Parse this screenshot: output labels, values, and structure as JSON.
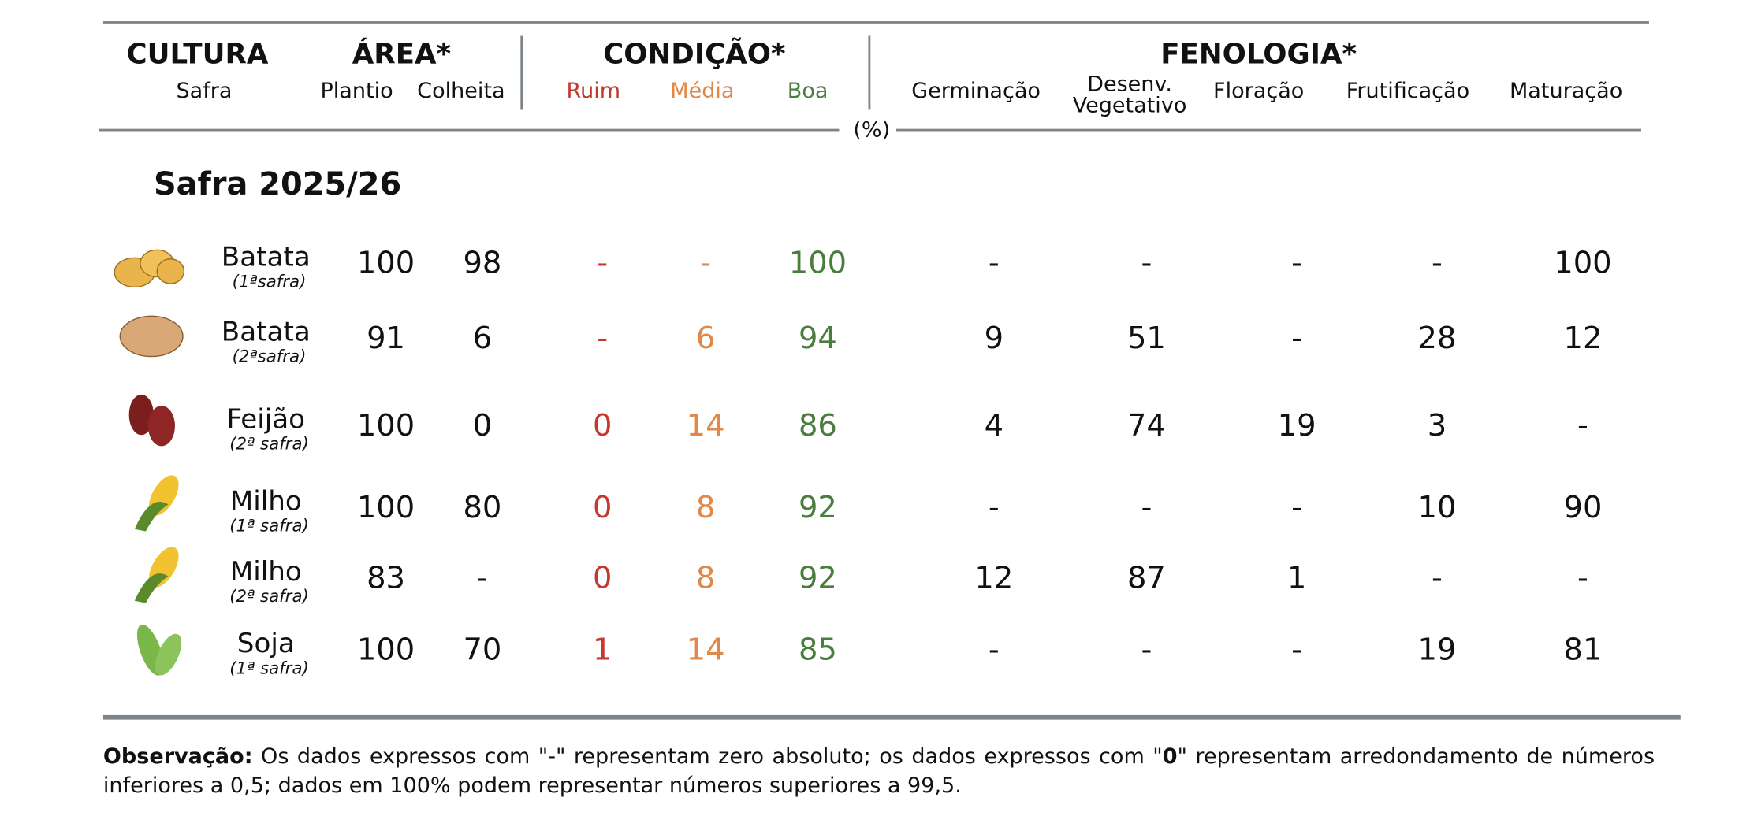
{
  "header": {
    "groups": [
      "CULTURA",
      "ÁREA*",
      "CONDIÇÃO*",
      "FENOLOGIA*"
    ],
    "columns": [
      "Safra",
      "Plantio",
      "Colheita",
      "Ruim",
      "Média",
      "Boa",
      "Germinação",
      "Desenv. Vegetativo",
      "Floração",
      "Frutificação",
      "Maturação"
    ],
    "unit": "(%)"
  },
  "section": "Safra 2025/26",
  "rows": [
    {
      "crop": "Batata",
      "season": "(1ªsafra)",
      "values": [
        100,
        98,
        "-",
        "-",
        100,
        "-",
        "-",
        "-",
        "-",
        100
      ]
    },
    {
      "crop": "Batata",
      "season": "(2ªsafra)",
      "values": [
        91,
        6,
        "-",
        6,
        94,
        9,
        51,
        "-",
        28,
        12
      ]
    },
    {
      "crop": "Feijão",
      "season": "(2ª safra)",
      "values": [
        100,
        0,
        0,
        14,
        86,
        4,
        74,
        19,
        3,
        "-"
      ]
    },
    {
      "crop": "Milho",
      "season": "(1ª safra)",
      "values": [
        100,
        80,
        0,
        8,
        92,
        "-",
        "-",
        "-",
        10,
        90
      ]
    },
    {
      "crop": "Milho",
      "season": "(2ª safra)",
      "values": [
        83,
        "-",
        0,
        8,
        92,
        12,
        87,
        1,
        "-",
        "-"
      ]
    },
    {
      "crop": "Soja",
      "season": "(1ª safra)",
      "values": [
        100,
        70,
        1,
        14,
        85,
        "-",
        "-",
        "-",
        19,
        81
      ]
    }
  ],
  "note": {
    "label": "Observação:",
    "parts": [
      "Os dados expressos com \"-\" representam zero absoluto; os dados expressos com \"",
      "0",
      "\" representam arredondamento de números inferiores a 0,5; dados em 100% podem representar números superiores a 99,5."
    ]
  }
}
